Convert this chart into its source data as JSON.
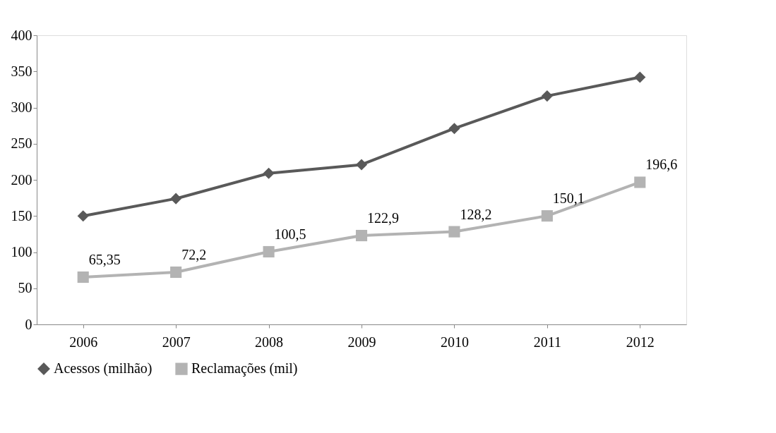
{
  "chart_data": {
    "type": "line",
    "categories": [
      "2006",
      "2007",
      "2008",
      "2009",
      "2010",
      "2011",
      "2012"
    ],
    "series": [
      {
        "name": "Acessos (milhão)",
        "color": "#595959",
        "marker": "diamond",
        "values": [
          150,
          174,
          209,
          221,
          271,
          316,
          342
        ]
      },
      {
        "name": "Reclamações (mil)",
        "color": "#b3b3b3",
        "marker": "square",
        "values": [
          65.35,
          72.2,
          100.5,
          122.9,
          128.2,
          150.1,
          196.6
        ],
        "value_labels": [
          "65,35",
          "72,2",
          "100,5",
          "122,9",
          "128,2",
          "150,1",
          "196,6"
        ]
      }
    ],
    "ylim": [
      0,
      400
    ],
    "yticks": [
      0,
      50,
      100,
      150,
      200,
      250,
      300,
      350,
      400
    ],
    "grid": false,
    "legend": "bottom"
  }
}
